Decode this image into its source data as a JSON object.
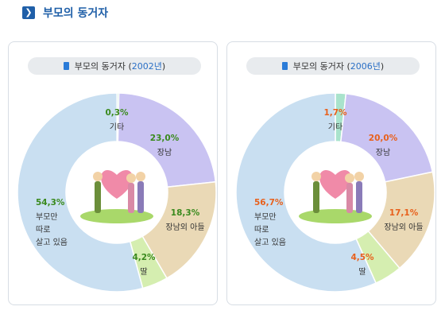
{
  "header": {
    "title": "부모의 동거자",
    "icon": "chevron-right-icon"
  },
  "chart_data": [
    {
      "type": "pie",
      "title": "부모의 동거자",
      "title_year": "2002년",
      "label_color": "#3a8a1e",
      "slices": [
        {
          "label": "기타",
          "value": 0.3,
          "pct": "0,3%",
          "color": "#cde9dc"
        },
        {
          "label": "장남",
          "value": 23.0,
          "pct": "23,0%",
          "color": "#c9c3f2"
        },
        {
          "label": "장남외 아들",
          "value": 18.3,
          "pct": "18,3%",
          "color": "#ead9b6"
        },
        {
          "label": "딸",
          "value": 4.2,
          "pct": "4,2%",
          "color": "#d5eeb0"
        },
        {
          "label": "부모만 따로 살고 있음",
          "value": 54.3,
          "pct": "54,3%",
          "color": "#c9dff1",
          "label_lines": [
            "부모만",
            "따로",
            "살고 있음"
          ]
        }
      ]
    },
    {
      "type": "pie",
      "title": "부모의 동거자",
      "title_year": "2006년",
      "label_color": "#e8601c",
      "slices": [
        {
          "label": "기타",
          "value": 1.7,
          "pct": "1,7%",
          "color": "#a9e3cc"
        },
        {
          "label": "장남",
          "value": 20.0,
          "pct": "20,0%",
          "color": "#c9c3f2"
        },
        {
          "label": "장남외 아들",
          "value": 17.1,
          "pct": "17,1%",
          "color": "#ead9b6"
        },
        {
          "label": "딸",
          "value": 4.5,
          "pct": "4,5%",
          "color": "#d5eeb0"
        },
        {
          "label": "부모만 따로 살고 있음",
          "value": 56.7,
          "pct": "56,7%",
          "color": "#c9dff1",
          "label_lines": [
            "부모만",
            "따로",
            "살고 있음"
          ]
        }
      ]
    }
  ]
}
